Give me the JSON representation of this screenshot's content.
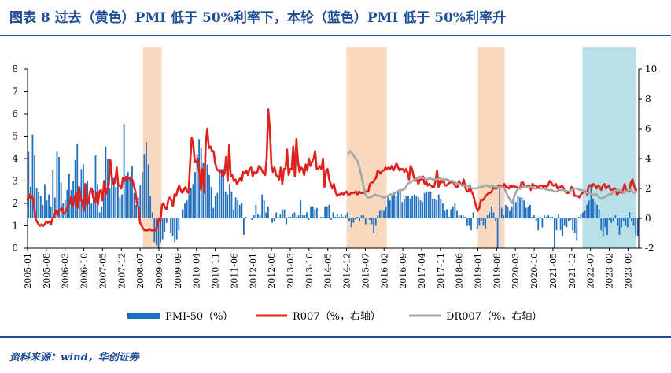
{
  "title": "图表 8 过去（黄色）PMI 低于 50%利率下，本轮（蓝色）PMI 低于 50%利率升",
  "source": "资料来源：wind，华创证券",
  "chart_data": {
    "type": "bar+line",
    "left_ylim": [
      0,
      8
    ],
    "left_ticks": [
      "0",
      "1",
      "2",
      "3",
      "4",
      "5",
      "6",
      "7",
      "8"
    ],
    "right_ylim": [
      -2,
      10
    ],
    "right_ticks": [
      "-2",
      "0",
      "2",
      "4",
      "6",
      "8",
      "10"
    ],
    "x_tick_labels": [
      "2005-01",
      "2005-08",
      "2006-03",
      "2006-10",
      "2007-05",
      "2007-12",
      "2008-07",
      "2009-02",
      "2009-09",
      "2010-04",
      "2010-11",
      "2011-06",
      "2012-01",
      "2012-08",
      "2013-03",
      "2013-10",
      "2014-05",
      "2014-12",
      "2015-07",
      "2016-02",
      "2016-09",
      "2017-04",
      "2017-11",
      "2018-06",
      "2019-01",
      "2019-08",
      "2020-03",
      "2020-10",
      "2021-05",
      "2021-12",
      "2022-07",
      "2023-02",
      "2023-09"
    ],
    "shaded_periods": [
      {
        "from": "2008-08",
        "to": "2009-02",
        "color": "#f8d9bf"
      },
      {
        "from": "2014-12",
        "to": "2016-02",
        "color": "#f8d9bf"
      },
      {
        "from": "2019-01",
        "to": "2019-10",
        "color": "#f8d9bf"
      },
      {
        "from": "2022-04",
        "to": "2023-11",
        "color": "#b9dfe9"
      }
    ],
    "series": [
      {
        "name": "PMI-50（%）",
        "type": "bar",
        "axis": "right",
        "color": "#1f6fbf",
        "values": [
          4.5,
          2.1,
          5.6,
          4.2,
          2.0,
          1.8,
          1.5,
          0.9,
          2.3,
          1.2,
          1.6,
          0.8,
          3.2,
          1.4,
          4.5,
          4.1,
          2.4,
          1.0,
          1.2,
          1.9,
          3.0,
          1.9,
          2.5,
          3.9,
          5.0,
          1.8,
          3.3,
          3.6,
          2.2,
          2.5,
          1.2,
          1.0,
          1.9,
          4.2,
          2.3,
          0.4,
          0.8,
          1.8,
          4.8,
          4.0,
          2.0,
          3.2,
          2.7,
          2.1,
          2.5,
          1.4,
          1.6,
          6.3,
          2.6,
          3.1,
          2.8,
          3.5,
          1.7,
          0.9,
          1.4,
          2.2,
          3.1,
          4.3,
          5.1,
          3.6,
          1.5,
          0.4,
          -1.6,
          -1.8,
          -2.0,
          -1.6,
          -1.4,
          -0.9,
          -0.3,
          0.0,
          -1.0,
          -1.2,
          -1.6,
          -1.4,
          -0.8,
          0.0,
          0.6,
          1.0,
          1.2,
          1.6,
          2.0,
          2.3,
          3.1,
          4.3,
          5.3,
          4.7,
          3.7,
          4.1,
          3.6,
          2.9,
          2.1,
          0.7,
          1.5,
          1.7,
          3.3,
          3.3,
          3.3,
          1.8,
          1.6,
          2.3,
          1.8,
          0.6,
          1.4,
          1.2,
          0.9,
          1.0,
          -1.1,
          0.1,
          0.0,
          0.0,
          -0.1,
          0.2,
          0.9,
          0.3,
          0.2,
          1.6,
          1.2,
          0.4,
          0.8,
          0.0,
          -0.3,
          -0.2,
          0.4,
          0.1,
          0.3,
          0.6,
          0.6,
          -0.4,
          0.1,
          0.1,
          0.3,
          0.4,
          0.1,
          0.2,
          1.2,
          0.2,
          0.2,
          0.4,
          -0.1,
          0.8,
          0.8,
          0.6,
          0.7,
          0.0,
          0.1,
          0.1,
          0.8,
          0.8,
          0.9,
          -0.1,
          0.4,
          0.1,
          0.3,
          0.1,
          0.3,
          0.1,
          0.2,
          0.4,
          -0.2,
          -0.6,
          -0.3,
          -0.1,
          0.1,
          -0.2,
          0.2,
          0.2,
          -0.4,
          0.0,
          -0.1,
          -0.4,
          -1.0,
          -0.5,
          0.2,
          0.5,
          0.6,
          0.5,
          0.8,
          1.4,
          1.2,
          1.5,
          1.8,
          1.5,
          1.8,
          1.9,
          1.1,
          1.3,
          1.5,
          1.5,
          1.3,
          1.5,
          1.6,
          1.5,
          1.4,
          1.2,
          1.1,
          1.7,
          1.8,
          1.8,
          1.8,
          1.3,
          1.3,
          1.2,
          1.6,
          1.3,
          1.0,
          0.5,
          0.6,
          0.1,
          0.6,
          0.8,
          1.0,
          0.5,
          0.2,
          0.2,
          0.2,
          0.1,
          -0.5,
          -0.5,
          -0.8,
          0.4,
          0.0,
          -0.7,
          -0.5,
          -0.2,
          -0.5,
          -0.7,
          0.2,
          0.4,
          0.8,
          0.4,
          -0.2,
          -2.0,
          2.0,
          0.7,
          0.2,
          0.9,
          0.8,
          0.5,
          0.8,
          1.3,
          1.1,
          1.5,
          1.4,
          1.4,
          1.2,
          0.7,
          0.8,
          0.9,
          0.1,
          0.2,
          -0.2,
          -0.8,
          0.1,
          -0.6,
          0.2,
          0.1,
          0.2,
          0.1,
          0.1,
          -2.0,
          -0.8,
          0.3,
          -0.8,
          -1.2,
          -0.5,
          -0.6,
          -0.2,
          -0.1,
          -0.8,
          -1.0,
          -1.5,
          0.1,
          0.3,
          0.4,
          0.5,
          0.9,
          1.2,
          2.3,
          1.3,
          1.1,
          0.9,
          0.6,
          -0.8,
          -1.2,
          -0.6,
          -1.1,
          -0.1,
          -0.3,
          -0.2,
          0.2,
          -0.5,
          -1.1,
          -0.6,
          -0.2,
          -0.5,
          -0.6,
          0.4,
          -0.2,
          -0.5,
          -1.1,
          -1.2
        ]
      },
      {
        "name": "R007（%，右轴）",
        "type": "line",
        "axis": "right",
        "color": "#e0221e",
        "values": [
          1.2,
          1.6,
          1.3,
          1.5,
          1.1,
          0.0,
          -0.2,
          -0.4,
          -0.5,
          -0.4,
          -0.5,
          -0.4,
          -0.2,
          -0.3,
          -0.2,
          -0.4,
          0.0,
          0.1,
          0.5,
          0.2,
          0.5,
          0.6,
          0.7,
          0.3,
          0.4,
          0.6,
          0.9,
          1.0,
          1.5,
          0.8,
          1.3,
          1.7,
          0.7,
          2.1,
          1.2,
          1.2,
          0.5,
          2.3,
          0.9,
          1.1,
          1.8,
          2.0,
          1.4,
          1.1,
          1.7,
          0.9,
          1.8,
          1.9,
          1.2,
          2.5,
          1.6,
          1.9,
          2.3,
          3.9,
          2.7,
          2.3,
          2.4,
          3.4,
          2.2,
          2.2,
          2.0,
          2.7,
          2.5,
          2.8,
          2.6,
          2.7,
          2.5,
          2.6,
          2.2,
          1.8,
          1.0,
          0.7,
          -0.3,
          -0.5,
          -0.7,
          -0.8,
          -0.8,
          -0.8,
          -0.7,
          -0.8,
          -0.8,
          -0.8,
          -0.8,
          -0.5,
          0.0,
          -0.2,
          0.9,
          1.0,
          0.7,
          0.6,
          1.2,
          1.4,
          1.2,
          0.8,
          1.6,
          1.5,
          1.9,
          2.2,
          1.9,
          1.7,
          1.9,
          2.1,
          1.8,
          1.7,
          3.7,
          5.4,
          5.0,
          3.8,
          3.8,
          4.0,
          3.0,
          1.9,
          3.3,
          1.7,
          5.0,
          6.0,
          4.7,
          4.8,
          4.5,
          4.5,
          3.7,
          3.3,
          3.2,
          3.1,
          3.2,
          2.8,
          3.0,
          4.1,
          2.5,
          4.9,
          2.8,
          2.9,
          2.5,
          2.6,
          2.3,
          2.5,
          2.7,
          2.5,
          3.1,
          3.0,
          3.2,
          2.9,
          3.3,
          3.4,
          2.8,
          3.1,
          3.0,
          3.1,
          3.5,
          3.4,
          3.2,
          3.0,
          2.9,
          4.0,
          7.3,
          6.0,
          3.6,
          3.1,
          3.4,
          2.9,
          2.8,
          2.6,
          3.4,
          2.3,
          3.3,
          3.3,
          4.6,
          2.9,
          3.3,
          3.3,
          4.8,
          2.8,
          5.3,
          3.8,
          3.1,
          3.4,
          3.3,
          2.9,
          3.6,
          3.2,
          4.0,
          3.5,
          3.8,
          4.0,
          4.5,
          3.3,
          3.3,
          3.5,
          3.3,
          4.0,
          2.1,
          3.2,
          3.3,
          2.6,
          2.3,
          2.0,
          2.3,
          1.8,
          1.5,
          1.6,
          1.6,
          1.7,
          1.6,
          1.7,
          1.8,
          1.6,
          1.6,
          1.7,
          1.7,
          1.7,
          1.8,
          1.6,
          1.8,
          1.7,
          1.7,
          1.7,
          1.8,
          1.8,
          1.8,
          2.3,
          2.4,
          2.4,
          2.6,
          2.7,
          3.2,
          3.1,
          3.0,
          3.2,
          3.2,
          3.4,
          3.3,
          3.4,
          3.3,
          3.5,
          3.2,
          3.4,
          3.7,
          3.4,
          3.2,
          3.3,
          3.3,
          3.1,
          3.3,
          3.1,
          2.6,
          3.5,
          3.3,
          2.8,
          2.5,
          2.7,
          2.3,
          2.6,
          2.6,
          2.8,
          2.3,
          2.5,
          2.2,
          2.3,
          2.2,
          2.1,
          2.1,
          2.5,
          3.2,
          2.1,
          2.5,
          2.4,
          2.6,
          2.2,
          2.2,
          2.3,
          2.4,
          2.4,
          2.5,
          2.3,
          2.1,
          2.1,
          2.5,
          2.3,
          2.2,
          2.6,
          2.1,
          1.8,
          1.8,
          2.2,
          1.8,
          1.6,
          1.2,
          0.8,
          0.5,
          0.7,
          1.2,
          1.2,
          1.3,
          1.5,
          1.6,
          1.7,
          1.7,
          1.8,
          2.1,
          2.0,
          2.0,
          2.2,
          2.2,
          2.2,
          2.1,
          2.3,
          2.1,
          2.1,
          2.0,
          2.2,
          2.1,
          2.2,
          2.1,
          2.1,
          2.0,
          2.0,
          2.4,
          2.4,
          2.1,
          2.1,
          2.2,
          2.2,
          1.9,
          2.3,
          2.2,
          2.2,
          2.1,
          2.1,
          2.2,
          2.2,
          2.1,
          2.2,
          2.1,
          2.2,
          2.5,
          2.4,
          2.2,
          2.2,
          2.3,
          2.0,
          2.1,
          2.1,
          2.2,
          2.0,
          1.8,
          1.7,
          1.7,
          1.8,
          2.1,
          2.0,
          1.5,
          1.5,
          1.5,
          1.4,
          1.6,
          1.7,
          1.8,
          1.8,
          1.6,
          2.2,
          2.2,
          2.1,
          2.3,
          2.2,
          2.0,
          2.2,
          2.1,
          1.9,
          2.2,
          2.3,
          2.0,
          2.1,
          2.2,
          1.9,
          1.9,
          2.0,
          2.0,
          1.6,
          1.7,
          1.8,
          1.7,
          1.9,
          2.3,
          1.9,
          1.8,
          1.8,
          2.4,
          2.6,
          2.2,
          1.9,
          1.9
        ]
      },
      {
        "name": "DR007（%，右轴）",
        "type": "line",
        "axis": "right",
        "color": "#a6a6a6",
        "values": [
          4.3,
          4.5,
          4.3,
          4.0,
          3.8,
          3.2,
          2.4,
          1.6,
          1.4,
          1.4,
          1.5,
          1.6,
          1.5,
          1.5,
          1.4,
          1.4,
          1.5,
          1.6,
          1.6,
          1.7,
          1.8,
          1.9,
          1.9,
          2.0,
          2.3,
          2.4,
          2.5,
          2.6,
          2.7,
          2.8,
          2.7,
          2.7,
          2.6,
          2.7,
          2.6,
          2.6,
          2.6,
          2.7,
          2.6,
          2.6,
          2.6,
          2.5,
          2.5,
          2.4,
          2.3,
          2.3,
          2.2,
          2.2,
          2.2,
          2.1,
          2.0,
          2.0,
          2.0,
          2.1,
          2.1,
          2.2,
          2.2,
          2.1,
          2.2,
          2.1,
          2.1,
          2.1,
          2.1,
          2.0,
          1.6,
          1.3,
          1.0,
          1.5,
          1.9,
          2.0,
          2.1,
          2.1,
          2.1,
          2.1,
          2.1,
          2.0,
          2.0,
          2.0,
          2.0,
          2.0,
          1.9,
          1.9,
          1.9,
          1.8,
          1.8,
          1.9,
          1.9,
          1.9,
          1.8,
          1.8,
          1.9,
          2.0,
          2.0,
          1.9,
          1.9,
          1.8,
          1.7,
          1.7,
          1.6,
          1.6,
          1.6,
          1.4,
          1.3,
          1.4,
          1.5,
          1.6,
          1.6,
          1.8,
          1.9,
          1.9,
          1.8,
          1.7,
          1.8,
          1.9,
          1.9,
          1.7,
          1.8
        ]
      }
    ]
  },
  "legend": {
    "pmi": "PMI-50（%）",
    "r007": "R007（%，右轴）",
    "dr007": "DR007（%，右轴）"
  }
}
